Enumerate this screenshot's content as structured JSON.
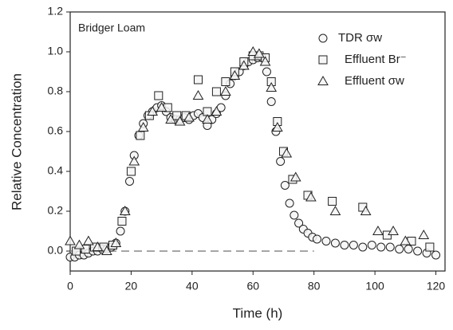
{
  "chart_data": {
    "type": "scatter",
    "annotation": "Bridger Loam",
    "xlabel": "Time (h)",
    "ylabel": "Relative Concentration",
    "xlim": [
      0,
      123
    ],
    "ylim": [
      -0.1,
      1.2
    ],
    "xticks": [
      0,
      20,
      40,
      60,
      80,
      100,
      120
    ],
    "yticks": [
      {
        "value": 0,
        "label": "0.0"
      },
      0.2,
      0.4,
      0.6,
      0.8,
      {
        "value": 1,
        "label": "1.0"
      },
      1.2
    ],
    "reference_line": {
      "y": 0,
      "x": [
        0,
        80
      ],
      "style": "dashed",
      "color": "#888888"
    },
    "legend": "upper right",
    "series": [
      {
        "name": "TDR σw",
        "marker": "circle",
        "color": "#222222",
        "x": [
          0,
          1.5,
          3,
          4.5,
          6,
          7.5,
          9,
          10.5,
          12,
          13.5,
          15,
          16.5,
          18,
          19.5,
          21,
          22.5,
          24,
          25.5,
          27,
          28.5,
          30,
          31.5,
          33,
          34.5,
          36,
          37.5,
          39,
          40.5,
          42,
          43.5,
          45,
          46.5,
          48,
          49.5,
          51,
          52.5,
          54,
          55.5,
          57,
          58.5,
          60,
          61.5,
          63,
          64.5,
          66,
          67.5,
          69,
          70.5,
          72,
          73.5,
          75,
          76.5,
          78,
          79.5,
          81,
          84,
          87,
          90,
          93,
          96,
          99,
          102,
          105,
          108,
          111,
          114,
          117,
          120
        ],
        "values": [
          -0.03,
          -0.03,
          -0.02,
          -0.02,
          -0.01,
          0,
          0,
          0.01,
          0.01,
          0.02,
          0.04,
          0.1,
          0.2,
          0.35,
          0.48,
          0.58,
          0.64,
          0.68,
          0.7,
          0.72,
          0.73,
          0.7,
          0.67,
          0.66,
          0.66,
          0.67,
          0.66,
          0.68,
          0.69,
          0.67,
          0.63,
          0.66,
          0.69,
          0.72,
          0.78,
          0.84,
          0.88,
          0.9,
          0.93,
          0.95,
          0.96,
          0.97,
          0.97,
          0.9,
          0.75,
          0.6,
          0.45,
          0.33,
          0.24,
          0.18,
          0.14,
          0.11,
          0.09,
          0.07,
          0.06,
          0.05,
          0.04,
          0.03,
          0.03,
          0.02,
          0.03,
          0.02,
          0.02,
          0.01,
          0.01,
          0,
          -0.01,
          -0.02
        ]
      },
      {
        "name": "Effluent Br⁻",
        "marker": "square",
        "color": "#222222",
        "x": [
          2,
          5,
          8,
          11,
          14,
          17,
          20,
          23,
          26,
          29,
          32,
          35,
          38,
          42,
          45,
          48,
          51,
          54,
          57,
          60,
          62,
          64,
          66,
          68,
          70,
          73,
          78,
          86,
          96,
          104,
          112,
          118
        ],
        "values": [
          0,
          0.01,
          0.02,
          0.02,
          0.03,
          0.15,
          0.4,
          0.58,
          0.68,
          0.78,
          0.72,
          0.68,
          0.68,
          0.86,
          0.7,
          0.8,
          0.85,
          0.9,
          0.95,
          0.98,
          0.98,
          0.97,
          0.85,
          0.65,
          0.5,
          0.36,
          0.28,
          0.25,
          0.22,
          0.08,
          0.05,
          0.02
        ]
      },
      {
        "name": "Effluent σw",
        "marker": "triangle",
        "color": "#222222",
        "x": [
          0,
          3,
          6,
          9,
          12,
          15,
          18,
          21,
          24,
          27,
          30,
          33,
          36,
          39,
          42,
          45,
          48,
          51,
          54,
          57,
          60,
          62,
          64,
          66,
          68,
          71,
          74,
          79,
          87,
          97,
          101,
          106,
          110,
          116
        ],
        "values": [
          0.05,
          0.03,
          0.05,
          0.02,
          0,
          0.04,
          0.2,
          0.45,
          0.62,
          0.7,
          0.72,
          0.66,
          0.65,
          0.67,
          0.78,
          0.66,
          0.7,
          0.8,
          0.88,
          0.93,
          1.0,
          0.99,
          0.95,
          0.82,
          0.62,
          0.49,
          0.37,
          0.27,
          0.2,
          0.2,
          0.1,
          0.1,
          0.05,
          0.08
        ]
      }
    ]
  }
}
